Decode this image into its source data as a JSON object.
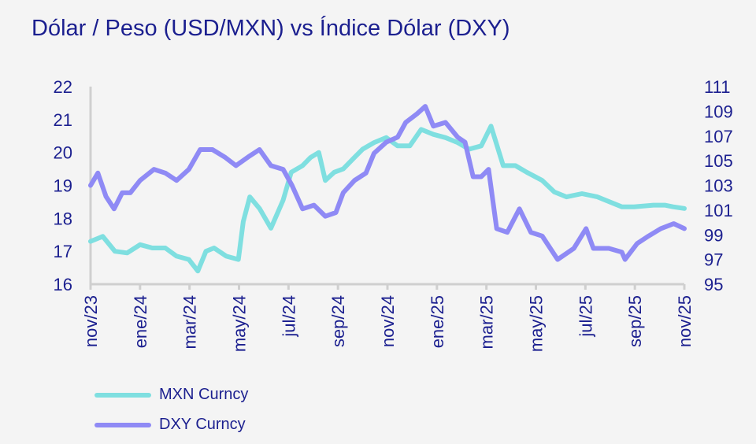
{
  "chart_data": {
    "type": "line",
    "title": "Dólar / Peso (USD/MXN) vs Índice Dólar (DXY)",
    "xlabel": "",
    "ylabel": "",
    "xlim": [
      "2023-11-01",
      "2025-11-01"
    ],
    "x_ticks": [
      "nov/23",
      "ene/24",
      "mar/24",
      "may/24",
      "jul/24",
      "sep/24",
      "nov/24",
      "ene/25",
      "mar/25",
      "may/25",
      "jul/25",
      "sep/25",
      "nov/25"
    ],
    "y_left": {
      "lim": [
        16,
        22
      ],
      "ticks": [
        "16",
        "17",
        "18",
        "19",
        "20",
        "21",
        "22"
      ]
    },
    "y_right": {
      "lim": [
        95,
        111
      ],
      "ticks": [
        "95",
        "97",
        "99",
        "101",
        "103",
        "105",
        "107",
        "109",
        "111"
      ]
    },
    "grid": false,
    "legend_position": "bottom-left",
    "series": [
      {
        "name": "MXN Curncy",
        "axis": "left",
        "color": "#7fdfe0",
        "points": [
          [
            "2023-11-01",
            17.3
          ],
          [
            "2023-11-16",
            17.45
          ],
          [
            "2023-12-01",
            17.0
          ],
          [
            "2023-12-16",
            16.95
          ],
          [
            "2024-01-01",
            17.2
          ],
          [
            "2024-01-16",
            17.1
          ],
          [
            "2024-02-01",
            17.1
          ],
          [
            "2024-02-15",
            16.85
          ],
          [
            "2024-03-01",
            16.75
          ],
          [
            "2024-03-12",
            16.4
          ],
          [
            "2024-03-22",
            17.0
          ],
          [
            "2024-04-01",
            17.1
          ],
          [
            "2024-04-16",
            16.85
          ],
          [
            "2024-05-01",
            16.75
          ],
          [
            "2024-05-07",
            17.9
          ],
          [
            "2024-05-15",
            18.65
          ],
          [
            "2024-05-27",
            18.3
          ],
          [
            "2024-06-10",
            17.7
          ],
          [
            "2024-06-25",
            18.55
          ],
          [
            "2024-07-05",
            19.4
          ],
          [
            "2024-07-19",
            19.6
          ],
          [
            "2024-07-29",
            19.85
          ],
          [
            "2024-08-08",
            20.0
          ],
          [
            "2024-08-16",
            19.15
          ],
          [
            "2024-08-27",
            19.4
          ],
          [
            "2024-09-07",
            19.5
          ],
          [
            "2024-09-21",
            19.85
          ],
          [
            "2024-10-01",
            20.1
          ],
          [
            "2024-10-15",
            20.3
          ],
          [
            "2024-10-30",
            20.45
          ],
          [
            "2024-11-13",
            20.2
          ],
          [
            "2024-11-28",
            20.2
          ],
          [
            "2024-12-12",
            20.7
          ],
          [
            "2024-12-27",
            20.55
          ],
          [
            "2025-01-11",
            20.45
          ],
          [
            "2025-01-26",
            20.3
          ],
          [
            "2025-02-09",
            20.1
          ],
          [
            "2025-02-24",
            20.2
          ],
          [
            "2025-03-08",
            20.8
          ],
          [
            "2025-03-23",
            19.6
          ],
          [
            "2025-04-07",
            19.6
          ],
          [
            "2025-04-21",
            19.4
          ],
          [
            "2025-05-10",
            19.15
          ],
          [
            "2025-05-25",
            18.8
          ],
          [
            "2025-06-09",
            18.65
          ],
          [
            "2025-06-28",
            18.75
          ],
          [
            "2025-07-17",
            18.65
          ],
          [
            "2025-08-16",
            18.35
          ],
          [
            "2025-08-31",
            18.35
          ],
          [
            "2025-09-24",
            18.4
          ],
          [
            "2025-10-08",
            18.4
          ],
          [
            "2025-10-18",
            18.35
          ],
          [
            "2025-11-01",
            18.3
          ]
        ]
      },
      {
        "name": "DXY Curncy",
        "axis": "right",
        "color": "#8f8af5",
        "points": [
          [
            "2023-11-01",
            103.0
          ],
          [
            "2023-11-10",
            104.0
          ],
          [
            "2023-11-20",
            102.1
          ],
          [
            "2023-11-30",
            101.1
          ],
          [
            "2023-12-10",
            102.4
          ],
          [
            "2023-12-20",
            102.4
          ],
          [
            "2024-01-01",
            103.4
          ],
          [
            "2024-01-18",
            104.3
          ],
          [
            "2024-02-01",
            104.0
          ],
          [
            "2024-02-15",
            103.4
          ],
          [
            "2024-03-01",
            104.3
          ],
          [
            "2024-03-15",
            105.9
          ],
          [
            "2024-03-30",
            105.9
          ],
          [
            "2024-04-14",
            105.3
          ],
          [
            "2024-04-28",
            104.6
          ],
          [
            "2024-05-13",
            105.3
          ],
          [
            "2024-05-27",
            105.9
          ],
          [
            "2024-06-10",
            104.6
          ],
          [
            "2024-06-25",
            104.3
          ],
          [
            "2024-07-06",
            103.0
          ],
          [
            "2024-07-19",
            101.1
          ],
          [
            "2024-08-02",
            101.4
          ],
          [
            "2024-08-16",
            100.5
          ],
          [
            "2024-08-29",
            100.8
          ],
          [
            "2024-09-07",
            102.4
          ],
          [
            "2024-09-21",
            103.4
          ],
          [
            "2024-10-05",
            104.0
          ],
          [
            "2024-10-15",
            105.6
          ],
          [
            "2024-10-30",
            106.5
          ],
          [
            "2024-11-13",
            106.9
          ],
          [
            "2024-11-23",
            108.1
          ],
          [
            "2024-12-07",
            108.8
          ],
          [
            "2024-12-17",
            109.4
          ],
          [
            "2024-12-27",
            107.8
          ],
          [
            "2025-01-11",
            108.1
          ],
          [
            "2025-01-26",
            106.9
          ],
          [
            "2025-02-04",
            106.5
          ],
          [
            "2025-02-14",
            103.7
          ],
          [
            "2025-02-24",
            103.7
          ],
          [
            "2025-03-05",
            104.3
          ],
          [
            "2025-03-15",
            99.5
          ],
          [
            "2025-03-28",
            99.2
          ],
          [
            "2025-04-12",
            101.1
          ],
          [
            "2025-04-26",
            99.2
          ],
          [
            "2025-05-10",
            98.9
          ],
          [
            "2025-05-29",
            97.0
          ],
          [
            "2025-06-18",
            97.9
          ],
          [
            "2025-07-03",
            99.5
          ],
          [
            "2025-07-12",
            97.9
          ],
          [
            "2025-07-31",
            97.9
          ],
          [
            "2025-08-16",
            97.6
          ],
          [
            "2025-08-20",
            97.0
          ],
          [
            "2025-09-04",
            98.3
          ],
          [
            "2025-09-18",
            98.9
          ],
          [
            "2025-10-03",
            99.5
          ],
          [
            "2025-10-19",
            99.9
          ],
          [
            "2025-11-01",
            99.5
          ]
        ]
      }
    ]
  }
}
